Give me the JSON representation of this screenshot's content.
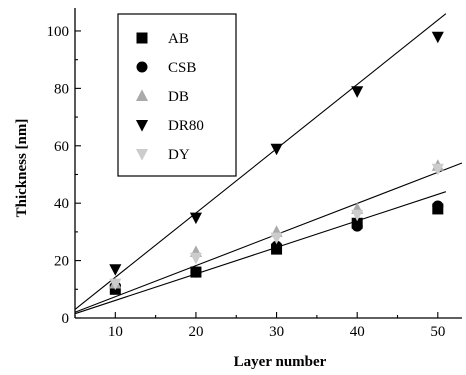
{
  "chart_data": {
    "type": "scatter",
    "xlabel": "Layer number",
    "ylabel": "Thickness [nm]",
    "xlim": [
      5,
      53
    ],
    "ylim": [
      0,
      108
    ],
    "xticks": [
      10,
      20,
      30,
      40,
      50
    ],
    "yticks": [
      0,
      20,
      40,
      60,
      80,
      100
    ],
    "grid": false,
    "legend_position": "top-left",
    "series": [
      {
        "name": "AB",
        "marker": "square",
        "color": "#000000",
        "x": [
          10,
          20,
          30,
          40,
          50
        ],
        "y": [
          10,
          16,
          24,
          33,
          38
        ]
      },
      {
        "name": "CSB",
        "marker": "circle",
        "color": "#000000",
        "x": [
          10,
          20,
          30,
          40,
          50
        ],
        "y": [
          11,
          16,
          25,
          32,
          39
        ]
      },
      {
        "name": "DB",
        "marker": "triangle-up",
        "color": "#aaaaaa",
        "x": [
          10,
          20,
          30,
          40,
          50
        ],
        "y": [
          12,
          23,
          30,
          38,
          53
        ]
      },
      {
        "name": "DR80",
        "marker": "triangle-down",
        "color": "#000000",
        "x": [
          10,
          20,
          30,
          40,
          50
        ],
        "y": [
          17,
          35,
          59,
          79,
          98
        ]
      },
      {
        "name": "DY",
        "marker": "triangle-down",
        "color": "#cccccc",
        "x": [
          10,
          20,
          30,
          40,
          50
        ],
        "y": [
          12,
          21,
          28,
          36,
          52
        ]
      }
    ],
    "fit_lines": [
      {
        "x": [
          5,
          51
        ],
        "y": [
          3,
          106
        ]
      },
      {
        "x": [
          5,
          53
        ],
        "y": [
          2,
          54
        ]
      },
      {
        "x": [
          5,
          51
        ],
        "y": [
          1.5,
          44
        ]
      }
    ]
  }
}
